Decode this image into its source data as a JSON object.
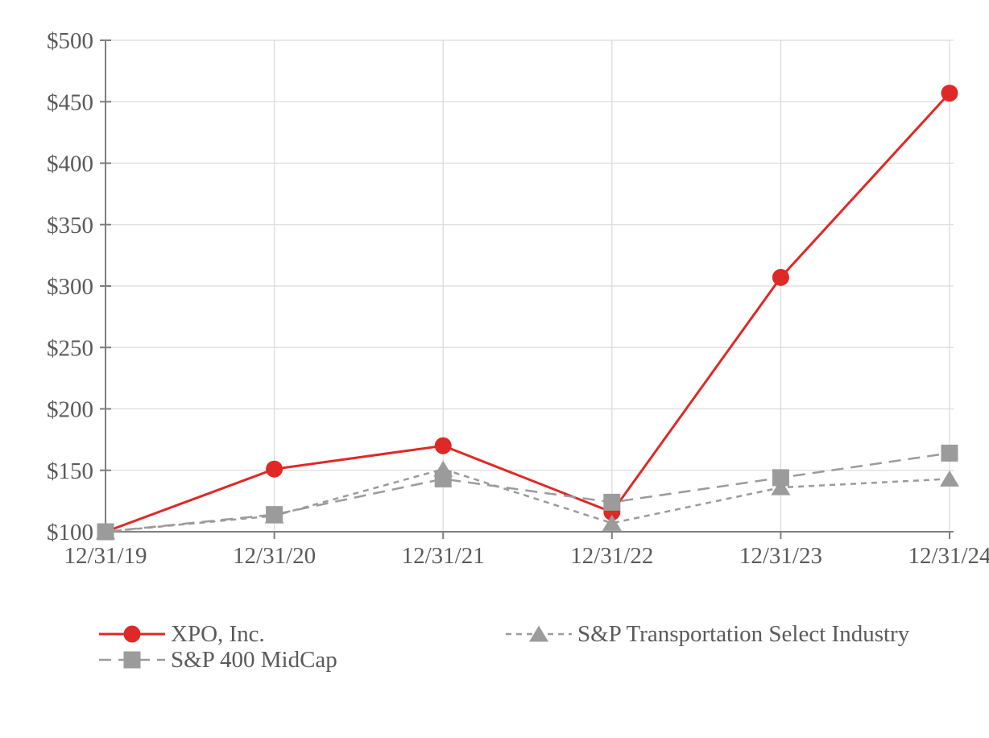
{
  "page": {
    "background": "#ffffff"
  },
  "chart_data": {
    "type": "line",
    "title": "",
    "xlabel": "",
    "ylabel": "",
    "x": [
      "12/31/19",
      "12/31/20",
      "12/31/21",
      "12/31/22",
      "12/31/23",
      "12/31/24"
    ],
    "series": [
      {
        "name": "XPO, Inc.",
        "values": [
          100,
          151,
          170,
          116,
          307,
          457
        ],
        "color": "#df2926",
        "marker": "circle",
        "line_style": "solid"
      },
      {
        "name": "S&P 400 MidCap",
        "values": [
          100,
          114,
          143,
          124,
          144,
          164
        ],
        "color": "#9b9b9b",
        "marker": "square",
        "line_style": "long-dash"
      },
      {
        "name": "S&P Transportation Select Industry",
        "values": [
          100,
          113,
          151,
          107,
          136,
          143
        ],
        "color": "#9b9b9b",
        "marker": "triangle",
        "line_style": "short-dash"
      }
    ],
    "z_order_indices": [
      0,
      2,
      1
    ],
    "ylim": [
      100,
      500
    ],
    "ytick_values": [
      100,
      150,
      200,
      250,
      300,
      350,
      400,
      450,
      500
    ],
    "ytick_labels": [
      "$100",
      "$150",
      "$200",
      "$250",
      "$300",
      "$350",
      "$400",
      "$450",
      "$500"
    ],
    "grid": true,
    "legend_position": "bottom",
    "colors": {
      "gridline": "#dcdcdc",
      "axis": "#7f7f7f",
      "tick_text": "#5a5a5b"
    }
  }
}
